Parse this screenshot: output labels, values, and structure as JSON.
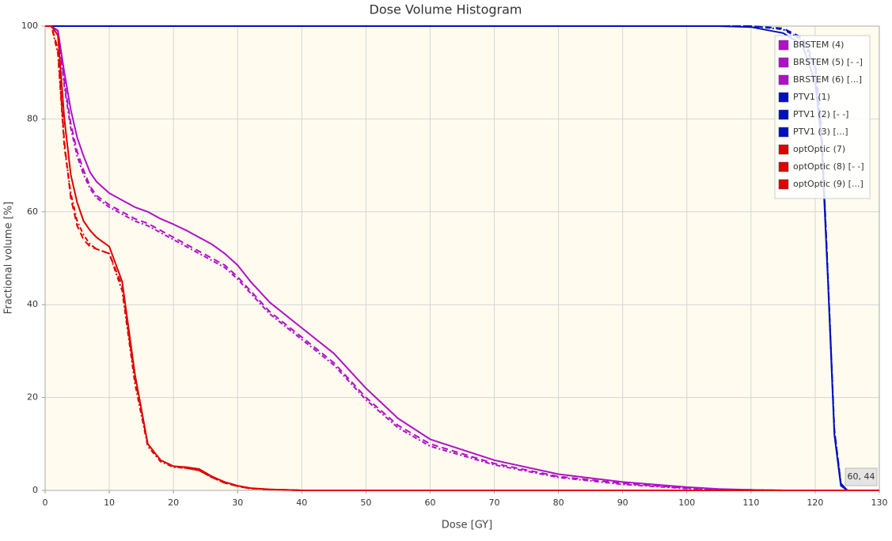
{
  "chart_data": {
    "type": "line",
    "title": "Dose Volume Histogram",
    "x_label": "Dose [GY]",
    "y_label": "Fractional volume [%]",
    "annotation": "60, 44",
    "xlim": [
      0,
      130
    ],
    "ylim": [
      0,
      100
    ],
    "xticks": [
      0,
      10,
      20,
      30,
      40,
      50,
      60,
      70,
      80,
      90,
      100,
      110,
      120,
      130
    ],
    "yticks": [
      0,
      20,
      40,
      60,
      80,
      100
    ],
    "grid": true,
    "legend": "upper right",
    "x": [
      0,
      1,
      2,
      3,
      4,
      5,
      6,
      7,
      8,
      10,
      12,
      14,
      16,
      18,
      20,
      22,
      24,
      26,
      28,
      30,
      32,
      35,
      40,
      45,
      50,
      55,
      60,
      70,
      80,
      90,
      100,
      105,
      110,
      115,
      118,
      120,
      121,
      122,
      123,
      124,
      125,
      130
    ],
    "series": [
      {
        "name": "BRSTEM (4)",
        "color": "#b010c8",
        "dash": "solid",
        "values": [
          100,
          100,
          99,
          90,
          82,
          76,
          72,
          68.5,
          66.5,
          64,
          62.5,
          61,
          60,
          58.5,
          57.3,
          56,
          54.5,
          53,
          51,
          48.5,
          45,
          40.5,
          35,
          29.5,
          22,
          15.5,
          11,
          6.5,
          3.5,
          1.8,
          0.7,
          0.3,
          0.1,
          0,
          0,
          0,
          0,
          0,
          0,
          0,
          0,
          0
        ]
      },
      {
        "name": "BRSTEM (5) [- -]",
        "color": "#b010c8",
        "dash": "dashed",
        "values": [
          100,
          100,
          99,
          88,
          79,
          73,
          69,
          65.5,
          63.5,
          61.5,
          60,
          58.5,
          57.5,
          56,
          54.5,
          53,
          51.5,
          50,
          48.5,
          46,
          43,
          38.5,
          33,
          27.5,
          20,
          14,
          10,
          5.8,
          3,
          1.5,
          0.5,
          0.2,
          0.1,
          0,
          0,
          0,
          0,
          0,
          0,
          0,
          0,
          0
        ]
      },
      {
        "name": "BRSTEM (6) [...]",
        "color": "#b010c8",
        "dash": "dotted",
        "values": [
          100,
          100,
          99,
          87,
          78,
          72,
          68,
          65,
          63,
          61,
          59.5,
          58,
          57,
          55.5,
          54,
          52.5,
          51,
          49.5,
          48,
          45.5,
          42.5,
          38,
          32.5,
          27,
          19.5,
          13.5,
          9.5,
          5.5,
          2.8,
          1.3,
          0.4,
          0.2,
          0.1,
          0,
          0,
          0,
          0,
          0,
          0,
          0,
          0,
          0
        ]
      },
      {
        "name": "PTV1 (1)",
        "color": "#0010c0",
        "dash": "solid",
        "values": [
          100,
          100,
          100,
          100,
          100,
          100,
          100,
          100,
          100,
          100,
          100,
          100,
          100,
          100,
          100,
          100,
          100,
          100,
          100,
          100,
          100,
          100,
          100,
          100,
          100,
          100,
          100,
          100,
          100,
          100,
          100,
          100,
          99.8,
          98.5,
          96,
          88,
          75,
          45,
          12,
          1,
          0,
          0
        ]
      },
      {
        "name": "PTV1 (2) [- -]",
        "color": "#0010c0",
        "dash": "dashed",
        "values": [
          100,
          100,
          100,
          100,
          100,
          100,
          100,
          100,
          100,
          100,
          100,
          100,
          100,
          100,
          100,
          100,
          100,
          100,
          100,
          100,
          100,
          100,
          100,
          100,
          100,
          100,
          100,
          100,
          100,
          100,
          100,
          100,
          100,
          99.5,
          97.5,
          92,
          78,
          46,
          13,
          1.5,
          0,
          0
        ]
      },
      {
        "name": "PTV1 (3) [...]",
        "color": "#0010c0",
        "dash": "dotted",
        "values": [
          100,
          100,
          100,
          100,
          100,
          100,
          100,
          100,
          100,
          100,
          100,
          100,
          100,
          100,
          100,
          100,
          100,
          100,
          100,
          100,
          100,
          100,
          100,
          100,
          100,
          100,
          100,
          100,
          100,
          100,
          100,
          100,
          100,
          99.3,
          97,
          91,
          77,
          46,
          13,
          1.5,
          0,
          0
        ]
      },
      {
        "name": "optOptic (7)",
        "color": "#e00000",
        "dash": "solid",
        "values": [
          100,
          100,
          98,
          80,
          68,
          62,
          58,
          56,
          54.5,
          52.5,
          45,
          25,
          10,
          6.5,
          5.2,
          5,
          4.6,
          3,
          1.8,
          1,
          0.5,
          0.2,
          0,
          0,
          0,
          0,
          0,
          0,
          0,
          0,
          0,
          0,
          0,
          0,
          0,
          0,
          0,
          0,
          0,
          0,
          0,
          0
        ]
      },
      {
        "name": "optOptic (8) [- -]",
        "color": "#e00000",
        "dash": "dashed",
        "values": [
          100,
          100,
          95,
          75,
          63,
          57,
          54,
          52.5,
          52,
          51,
          44,
          24,
          10,
          6.5,
          5.2,
          4.8,
          4.3,
          2.8,
          1.6,
          0.9,
          0.4,
          0.2,
          0,
          0,
          0,
          0,
          0,
          0,
          0,
          0,
          0,
          0,
          0,
          0,
          0,
          0,
          0,
          0,
          0,
          0,
          0,
          0
        ]
      },
      {
        "name": "optOptic (9) [...]",
        "color": "#e00000",
        "dash": "dotted",
        "values": [
          100,
          100,
          94,
          74,
          64,
          58,
          55,
          53,
          52,
          51,
          43,
          23,
          9.5,
          6.2,
          5,
          4.8,
          4.3,
          2.8,
          1.6,
          0.9,
          0.4,
          0.2,
          0,
          0,
          0,
          0,
          0,
          0,
          0,
          0,
          0,
          0,
          0,
          0,
          0,
          0,
          0,
          0,
          0,
          0,
          0,
          0
        ]
      }
    ]
  }
}
